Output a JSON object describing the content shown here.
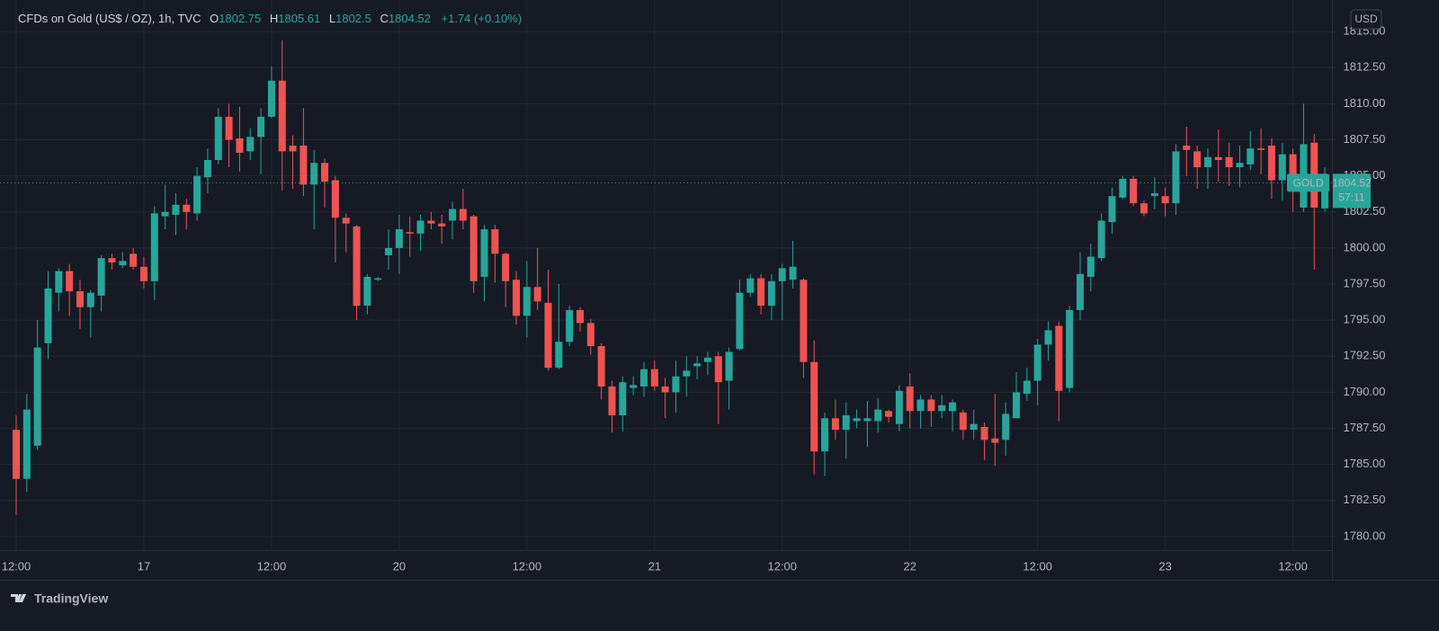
{
  "chart_data": {
    "type": "candlestick",
    "title": "CFDs on Gold (US$ / OZ), 1h, TVC",
    "ohlc_labels": [
      "O",
      "H",
      "L",
      "C"
    ],
    "change": "+1.74 (+0.10%)",
    "symbol": "GOLD",
    "countdown": "57:11",
    "currency": "USD",
    "brand": "TradingView",
    "up_color": "#26a69a",
    "down_color": "#ef5350",
    "grid": true,
    "ylim": [
      1779.06,
      1816.88
    ],
    "yticks": [
      {
        "value": 1780,
        "label": "1780.00"
      },
      {
        "value": 1782.5,
        "label": "1782.50"
      },
      {
        "value": 1785,
        "label": "1785.00"
      },
      {
        "value": 1787.5,
        "label": "1787.50"
      },
      {
        "value": 1790,
        "label": "1790.00"
      },
      {
        "value": 1792.5,
        "label": "1792.50"
      },
      {
        "value": 1795,
        "label": "1795.00"
      },
      {
        "value": 1797.5,
        "label": "1797.50"
      },
      {
        "value": 1800,
        "label": "1800.00"
      },
      {
        "value": 1802.5,
        "label": "1802.50"
      },
      {
        "value": 1805,
        "label": "1805.00"
      },
      {
        "value": 1807.5,
        "label": "1807.50"
      },
      {
        "value": 1810,
        "label": "1810.00"
      },
      {
        "value": 1812.5,
        "label": "1812.50"
      },
      {
        "value": 1815,
        "label": "1815.00"
      }
    ],
    "categories": [
      "12:00",
      null,
      null,
      null,
      null,
      null,
      null,
      null,
      null,
      null,
      null,
      null,
      "17",
      null,
      null,
      null,
      null,
      null,
      null,
      null,
      null,
      null,
      null,
      null,
      "12:00",
      null,
      null,
      null,
      null,
      null,
      null,
      null,
      null,
      null,
      null,
      null,
      "20",
      null,
      null,
      null,
      null,
      null,
      null,
      null,
      null,
      null,
      null,
      null,
      "12:00",
      null,
      null,
      null,
      null,
      null,
      null,
      null,
      null,
      null,
      null,
      null,
      "21",
      null,
      null,
      null,
      null,
      null,
      null,
      null,
      null,
      null,
      null,
      null,
      "12:00",
      null,
      null,
      null,
      null,
      null,
      null,
      null,
      null,
      null,
      null,
      null,
      "22",
      null,
      null,
      null,
      null,
      null,
      null,
      null,
      null,
      null,
      null,
      null,
      "12:00",
      null,
      null,
      null,
      null,
      null,
      null,
      null,
      null,
      null,
      null,
      null,
      "23",
      null,
      null,
      null,
      null,
      null,
      null,
      null,
      null,
      null,
      null,
      null,
      "12:00",
      null,
      null,
      null
    ],
    "open": [
      1787.4,
      1784.0,
      1786.3,
      1793.4,
      1796.9,
      1798.4,
      1797.0,
      1795.9,
      1796.7,
      1799.3,
      1798.8,
      1799.6,
      1798.7,
      1797.7,
      1802.2,
      1802.3,
      1803.0,
      1802.4,
      1804.9,
      1806.1,
      1809.1,
      1807.6,
      1806.7,
      1807.7,
      1809.1,
      1811.6,
      1807.1,
      1807.1,
      1804.4,
      1805.9,
      1804.7,
      1802.1,
      1801.5,
      1796.0,
      1797.8,
      1799.5,
      1800.0,
      1801.1,
      1801.0,
      1801.9,
      1801.7,
      1801.9,
      1802.7,
      1802.2,
      1798.0,
      1801.3,
      1799.6,
      1797.8,
      1795.3,
      1797.3,
      1796.2,
      1791.7,
      1793.5,
      1795.7,
      1794.8,
      1793.2,
      1790.4,
      1788.4,
      1790.3,
      1790.4,
      1791.6,
      1790.4,
      1790.0,
      1791.1,
      1791.8,
      1792.1,
      1792.5,
      1790.8,
      1793.0,
      1796.9,
      1797.9,
      1796.0,
      1797.7,
      1797.8,
      1797.8,
      1792.1,
      1785.9,
      1788.2,
      1787.4,
      1788.0,
      1788.0,
      1788.0,
      1788.7,
      1787.8,
      1790.4,
      1788.7,
      1789.5,
      1788.7,
      1788.7,
      1788.6,
      1787.4,
      1787.6,
      1786.8,
      1786.7,
      1788.2,
      1789.9,
      1790.8,
      1793.3,
      1794.6,
      1790.3,
      1795.7,
      1798.0,
      1799.3,
      1801.8,
      1803.5,
      1804.8,
      1803.1,
      1803.6,
      1803.6,
      1803.1,
      1807.1,
      1806.7,
      1805.6,
      1806.3,
      1806.3,
      1805.6,
      1805.8,
      1806.9,
      1807.1,
      1804.7,
      1806.5,
      1802.8,
      1807.3,
      1802.75
    ],
    "high": [
      1788.4,
      1789.9,
      1795.0,
      1798.4,
      1798.6,
      1798.9,
      1797.8,
      1797.1,
      1799.5,
      1799.6,
      1799.7,
      1800.0,
      1799.4,
      1802.9,
      1804.4,
      1803.8,
      1803.4,
      1805.6,
      1806.9,
      1809.7,
      1810.0,
      1809.8,
      1808.3,
      1809.7,
      1812.6,
      1814.4,
      1807.8,
      1809.7,
      1806.8,
      1806.2,
      1805.0,
      1802.4,
      1801.6,
      1798.2,
      1798.0,
      1801.3,
      1802.3,
      1802.2,
      1802.3,
      1802.5,
      1802.3,
      1803.2,
      1804.1,
      1802.3,
      1801.6,
      1801.6,
      1799.7,
      1798.4,
      1799.1,
      1800.0,
      1798.5,
      1797.5,
      1796.0,
      1795.9,
      1795.1,
      1793.4,
      1790.8,
      1791.1,
      1791.1,
      1792.1,
      1792.2,
      1791.0,
      1792.2,
      1792.5,
      1792.5,
      1792.8,
      1792.8,
      1793.1,
      1797.8,
      1798.2,
      1798.2,
      1798.2,
      1798.9,
      1800.5,
      1797.9,
      1793.6,
      1788.6,
      1789.5,
      1789.3,
      1788.8,
      1789.4,
      1789.6,
      1788.8,
      1790.5,
      1791.3,
      1789.8,
      1789.8,
      1789.8,
      1789.5,
      1788.8,
      1788.8,
      1787.9,
      1789.9,
      1789.3,
      1791.4,
      1791.7,
      1793.7,
      1794.9,
      1794.9,
      1796.0,
      1799.7,
      1800.3,
      1802.4,
      1804.2,
      1805.0,
      1805.0,
      1803.3,
      1804.9,
      1804.2,
      1807.2,
      1808.4,
      1807.1,
      1806.9,
      1808.2,
      1807.3,
      1807.1,
      1808.1,
      1808.3,
      1807.6,
      1807.3,
      1806.9,
      1810.0,
      1807.9,
      1805.61
    ],
    "low": [
      1781.5,
      1783.1,
      1786.0,
      1792.3,
      1795.6,
      1795.3,
      1794.4,
      1793.8,
      1795.6,
      1798.5,
      1798.6,
      1798.5,
      1797.2,
      1796.4,
      1801.3,
      1800.9,
      1801.3,
      1801.9,
      1803.8,
      1805.8,
      1805.6,
      1805.3,
      1806.1,
      1805.1,
      1809.0,
      1804.0,
      1804.1,
      1803.6,
      1801.3,
      1802.8,
      1799.0,
      1799.7,
      1795.0,
      1795.4,
      1797.7,
      1798.5,
      1798.2,
      1799.4,
      1799.8,
      1801.3,
      1800.3,
      1800.6,
      1801.3,
      1796.9,
      1796.3,
      1797.6,
      1795.9,
      1794.7,
      1793.8,
      1795.7,
      1791.5,
      1791.6,
      1793.2,
      1794.2,
      1792.6,
      1789.5,
      1787.2,
      1787.3,
      1789.8,
      1789.7,
      1790.1,
      1788.2,
      1788.6,
      1789.7,
      1790.9,
      1791.2,
      1787.8,
      1788.8,
      1792.9,
      1796.6,
      1795.4,
      1795.0,
      1795.0,
      1797.2,
      1791.0,
      1784.3,
      1784.2,
      1786.7,
      1785.4,
      1787.5,
      1786.2,
      1787.2,
      1787.9,
      1787.3,
      1787.5,
      1787.5,
      1787.6,
      1788.2,
      1787.3,
      1786.7,
      1786.7,
      1785.3,
      1784.9,
      1785.6,
      1788.2,
      1789.4,
      1789.1,
      1792.2,
      1788.0,
      1790.0,
      1795.0,
      1797.0,
      1799.1,
      1801.0,
      1803.4,
      1802.9,
      1802.2,
      1802.7,
      1802.2,
      1802.3,
      1805.0,
      1804.1,
      1804.1,
      1804.6,
      1804.3,
      1804.2,
      1805.4,
      1805.1,
      1803.4,
      1803.3,
      1802.5,
      1802.5,
      1798.5,
      1802.5
    ],
    "close": [
      1784.0,
      1788.8,
      1793.1,
      1797.2,
      1798.4,
      1797.0,
      1795.9,
      1796.9,
      1799.3,
      1799.0,
      1799.1,
      1798.7,
      1797.7,
      1802.4,
      1802.5,
      1803.0,
      1802.5,
      1805.0,
      1806.1,
      1809.1,
      1807.5,
      1806.6,
      1807.7,
      1809.1,
      1811.6,
      1806.7,
      1806.7,
      1804.4,
      1805.9,
      1804.6,
      1802.1,
      1801.7,
      1796.0,
      1798.0,
      1797.9,
      1800.0,
      1801.3,
      1801.0,
      1801.9,
      1801.7,
      1801.5,
      1802.7,
      1801.9,
      1797.7,
      1801.3,
      1799.6,
      1797.7,
      1795.3,
      1797.3,
      1796.3,
      1791.7,
      1793.5,
      1795.7,
      1794.8,
      1793.2,
      1790.4,
      1788.4,
      1790.7,
      1790.5,
      1791.6,
      1790.4,
      1790.0,
      1791.1,
      1791.5,
      1792.0,
      1792.4,
      1790.7,
      1792.8,
      1796.9,
      1797.9,
      1796.0,
      1797.7,
      1798.6,
      1798.7,
      1792.1,
      1785.9,
      1788.2,
      1787.4,
      1788.4,
      1788.2,
      1788.2,
      1788.8,
      1788.3,
      1790.1,
      1788.7,
      1789.5,
      1788.7,
      1789.1,
      1789.3,
      1787.4,
      1787.8,
      1786.7,
      1786.5,
      1788.5,
      1790.0,
      1790.8,
      1793.3,
      1794.3,
      1790.1,
      1795.7,
      1798.2,
      1799.4,
      1801.9,
      1803.6,
      1804.8,
      1803.1,
      1802.4,
      1803.8,
      1803.1,
      1806.7,
      1806.8,
      1805.6,
      1806.3,
      1806.1,
      1805.6,
      1805.9,
      1806.9,
      1806.8,
      1804.7,
      1806.5,
      1804.9,
      1807.2,
      1802.8,
      1804.52
    ]
  }
}
